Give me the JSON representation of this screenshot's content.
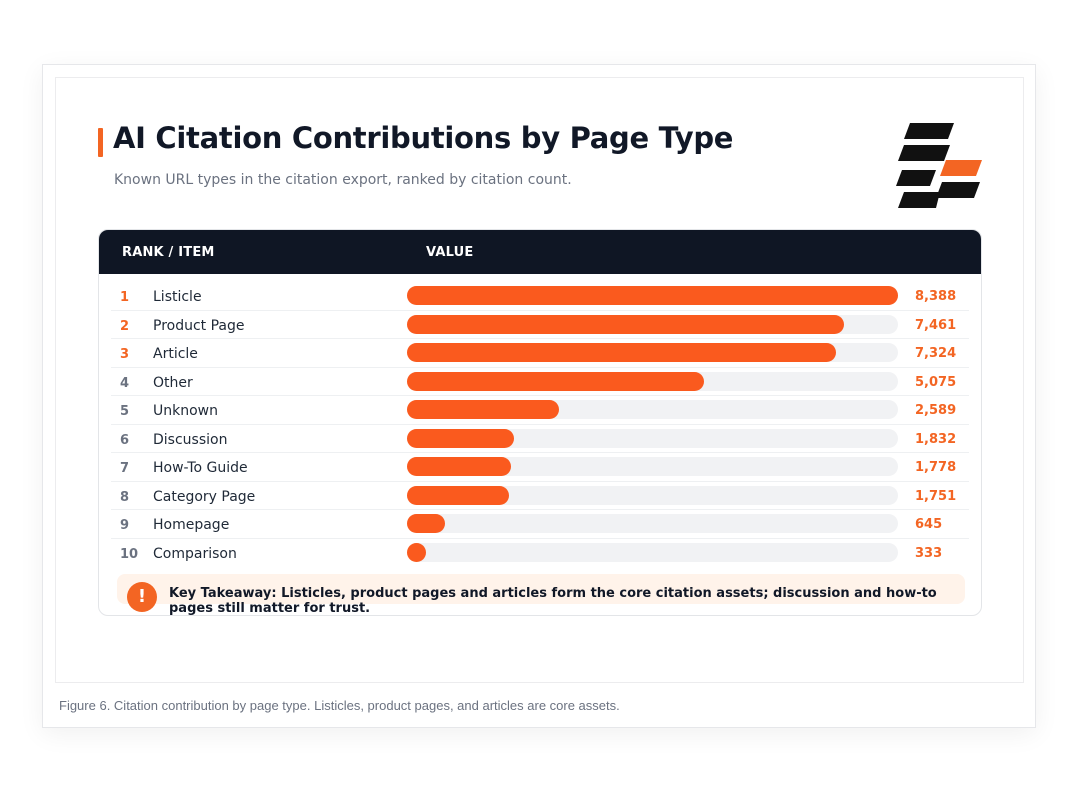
{
  "figure": {
    "title": "AI Citation Contributions by Page Type",
    "subtitle": "Known URL types in the citation export, ranked by citation count.",
    "caption": "Figure 6. Citation contribution by page type. Listicles, product pages, and articles are core assets."
  },
  "table": {
    "col_rank_item": "RANK / ITEM",
    "col_value": "VALUE"
  },
  "takeaway": {
    "icon": "!",
    "text": "Key Takeaway: Listicles, product pages and articles form the core citation assets; discussion and how-to pages still matter for trust."
  },
  "colors": {
    "accent": "#f36523",
    "bar": "#fa5a1e",
    "track": "#f1f2f4",
    "header_bg": "#0f1624"
  },
  "chart_data": {
    "type": "bar",
    "orientation": "horizontal",
    "title": "AI Citation Contributions by Page Type",
    "subtitle": "Known URL types in the citation export, ranked by citation count.",
    "xlim": [
      0,
      8388
    ],
    "grid": false,
    "ranks": [
      "1",
      "2",
      "3",
      "4",
      "5",
      "6",
      "7",
      "8",
      "9",
      "10"
    ],
    "categories": [
      "Listicle",
      "Product Page",
      "Article",
      "Other",
      "Unknown",
      "Discussion",
      "How-To Guide",
      "Category Page",
      "Homepage",
      "Comparison"
    ],
    "values": [
      8388,
      7461,
      7324,
      5075,
      2589,
      1832,
      1778,
      1751,
      645,
      333
    ],
    "value_labels": [
      "8,388",
      "7,461",
      "7,324",
      "5,075",
      "2,589",
      "1,832",
      "1,778",
      "1,751",
      "645",
      "333"
    ]
  }
}
